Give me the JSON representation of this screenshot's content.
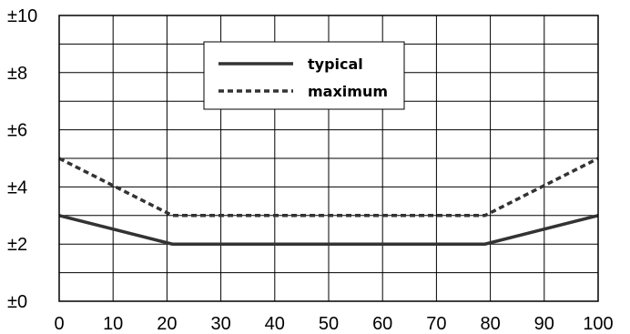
{
  "chart_data": {
    "type": "line",
    "title": "",
    "xlabel": "",
    "ylabel": "",
    "xlim": [
      0,
      100
    ],
    "ylim": [
      0,
      10
    ],
    "grid": true,
    "legend_position": "top-center",
    "x_ticks": [
      "0",
      "10",
      "20",
      "30",
      "40",
      "50",
      "60",
      "70",
      "80",
      "90",
      "100"
    ],
    "y_ticks": [
      "±0",
      "±2",
      "±4",
      "±6",
      "±8",
      "±10"
    ],
    "series": [
      {
        "name": "typical",
        "style": "solid",
        "color": "#333333",
        "x": [
          0,
          21,
          79,
          100
        ],
        "y": [
          3,
          2,
          2,
          3
        ]
      },
      {
        "name": "maximum",
        "style": "dashed",
        "color": "#333333",
        "x": [
          0,
          21,
          79,
          100
        ],
        "y": [
          5,
          3,
          3,
          5
        ]
      }
    ]
  }
}
